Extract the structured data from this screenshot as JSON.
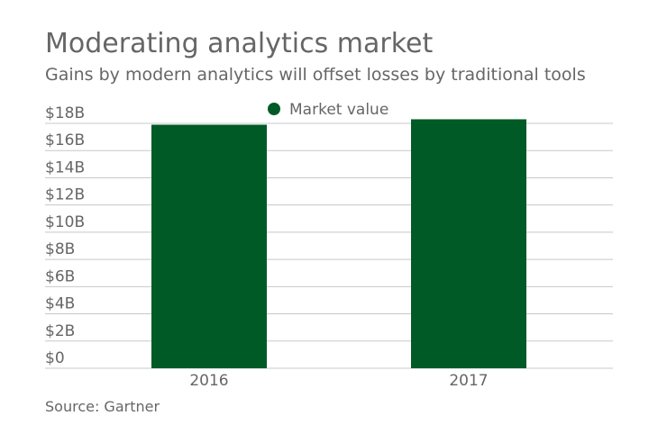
{
  "chart_data": {
    "type": "bar",
    "title": "Moderating analytics market",
    "subtitle": "Gains by modern analytics will offset losses by traditional tools",
    "source": "Source: Gartner",
    "categories": [
      "2016",
      "2017"
    ],
    "series": [
      {
        "name": "Market value",
        "color": "#005a25",
        "values": [
          17.9,
          18.3
        ]
      }
    ],
    "ylim": [
      0,
      18
    ],
    "yticks": [
      {
        "value": 0,
        "label": "$0"
      },
      {
        "value": 2,
        "label": "$2B"
      },
      {
        "value": 4,
        "label": "$4B"
      },
      {
        "value": 6,
        "label": "$6B"
      },
      {
        "value": 8,
        "label": "$8B"
      },
      {
        "value": 10,
        "label": "$10B"
      },
      {
        "value": 12,
        "label": "$12B"
      },
      {
        "value": 14,
        "label": "$14B"
      },
      {
        "value": 16,
        "label": "$16B"
      },
      {
        "value": 18,
        "label": "$18B"
      }
    ],
    "grid": true
  }
}
